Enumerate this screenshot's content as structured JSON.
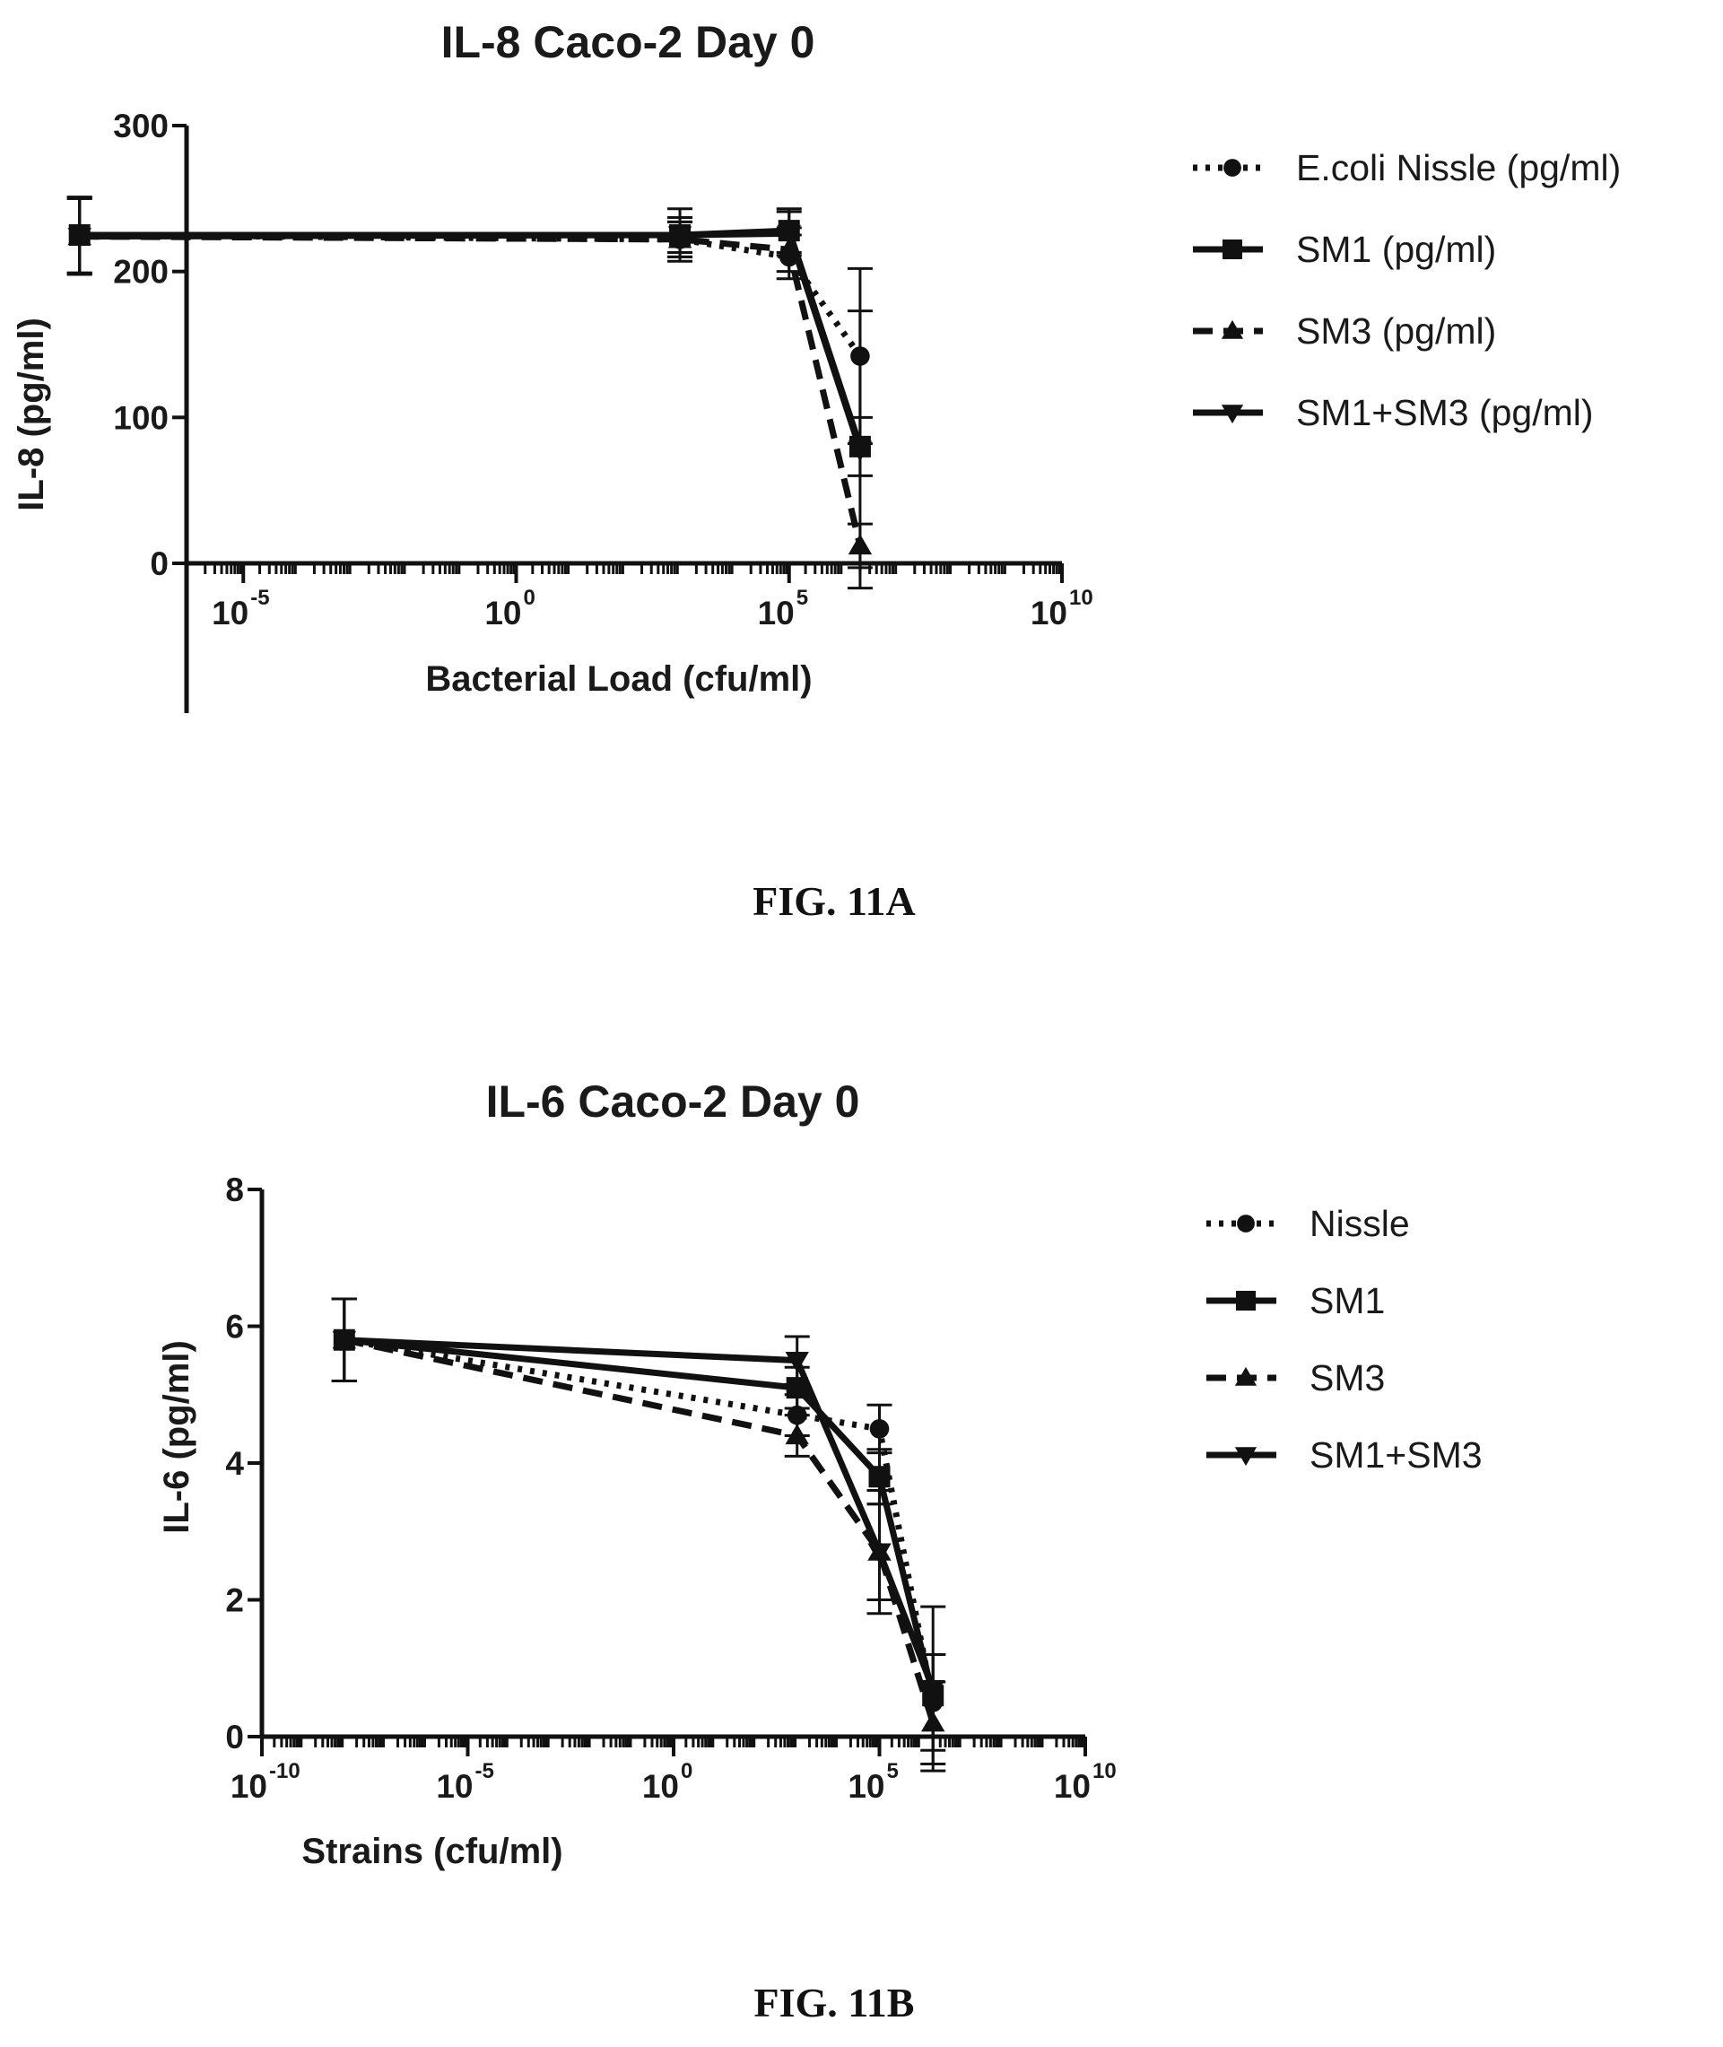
{
  "chart_data": [
    {
      "type": "line",
      "title": "IL-8 Caco-2 Day 0",
      "xlabel": "Bacterial Load (cfu/ml)",
      "ylabel": "IL-8 (pg/ml)",
      "caption": "FIG. 11A",
      "x_scale": "log10",
      "xlim_exp": [
        -10,
        10
      ],
      "ylim": [
        0,
        300
      ],
      "y_ticks": [
        0,
        100,
        200,
        300
      ],
      "x_ticks": [
        {
          "base": "10",
          "exp": "-5",
          "value_exp": -5
        },
        {
          "base": "10",
          "exp": "0",
          "value_exp": 0
        },
        {
          "base": "10",
          "exp": "5",
          "value_exp": 5
        },
        {
          "base": "10",
          "exp": "10",
          "value_exp": 10
        }
      ],
      "grid": false,
      "legend_position": "right",
      "series": [
        {
          "name": "E.coli Nissle (pg/ml)",
          "style": "dotted",
          "marker": "circle",
          "x": [
            1e-08,
            1000.0,
            100000.0,
            2000000.0
          ],
          "y": [
            225,
            222,
            210,
            142
          ],
          "err": [
            26,
            12,
            15,
            60
          ]
        },
        {
          "name": "SM1 (pg/ml)",
          "style": "solid",
          "marker": "square",
          "x": [
            1e-08,
            1000.0,
            100000.0,
            2000000.0
          ],
          "y": [
            225,
            225,
            228,
            80
          ],
          "err": [
            26,
            18,
            15,
            20
          ]
        },
        {
          "name": "SM3 (pg/ml)",
          "style": "dashed",
          "marker": "triangle-up",
          "x": [
            1e-08,
            1000.0,
            100000.0,
            2000000.0
          ],
          "y": [
            224,
            222,
            215,
            12
          ],
          "err": [
            26,
            12,
            15,
            15
          ]
        },
        {
          "name": "SM1+SM3 (pg/ml)",
          "style": "solid",
          "marker": "triangle-down",
          "x": [
            1e-08,
            1000.0,
            100000.0,
            2000000.0
          ],
          "y": [
            224,
            225,
            226,
            78
          ],
          "err": [
            26,
            12,
            15,
            95
          ]
        }
      ]
    },
    {
      "type": "line",
      "title": "IL-6 Caco-2 Day 0",
      "xlabel": "Strains (cfu/ml)",
      "ylabel": "IL-6 (pg/ml)",
      "caption": "FIG. 11B",
      "x_scale": "log10",
      "xlim_exp": [
        -10,
        10
      ],
      "ylim": [
        0,
        8
      ],
      "y_ticks": [
        0,
        2,
        4,
        6,
        8
      ],
      "x_ticks": [
        {
          "base": "10",
          "exp": "-10",
          "value_exp": -10
        },
        {
          "base": "10",
          "exp": "-5",
          "value_exp": -5
        },
        {
          "base": "10",
          "exp": "0",
          "value_exp": 0
        },
        {
          "base": "10",
          "exp": "5",
          "value_exp": 5
        },
        {
          "base": "10",
          "exp": "10",
          "value_exp": 10
        }
      ],
      "grid": false,
      "legend_position": "right",
      "series": [
        {
          "name": "Nissle",
          "style": "dotted",
          "marker": "circle",
          "x": [
            1e-08,
            1000.0,
            100000.0,
            2000000.0
          ],
          "y": [
            5.8,
            4.7,
            4.5,
            0.5
          ],
          "err": [
            0.6,
            0.3,
            0.35,
            0.7
          ]
        },
        {
          "name": "SM1",
          "style": "solid",
          "marker": "square",
          "x": [
            1e-08,
            1000.0,
            100000.0,
            2000000.0
          ],
          "y": [
            5.8,
            5.1,
            3.8,
            0.6
          ],
          "err": [
            0.6,
            0.3,
            0.4,
            0.6
          ]
        },
        {
          "name": "SM3",
          "style": "dashed",
          "marker": "triangle-up",
          "x": [
            1e-08,
            1000.0,
            100000.0,
            2000000.0
          ],
          "y": [
            5.8,
            4.4,
            2.7,
            0.2
          ],
          "err": [
            0.6,
            0.3,
            0.9,
            0.6
          ]
        },
        {
          "name": "SM1+SM3",
          "style": "solid",
          "marker": "triangle-down",
          "x": [
            1e-08,
            1000.0,
            100000.0,
            2000000.0
          ],
          "y": [
            5.8,
            5.5,
            2.7,
            0.7
          ],
          "err": [
            0.6,
            0.35,
            0.7,
            1.2
          ]
        }
      ]
    }
  ]
}
